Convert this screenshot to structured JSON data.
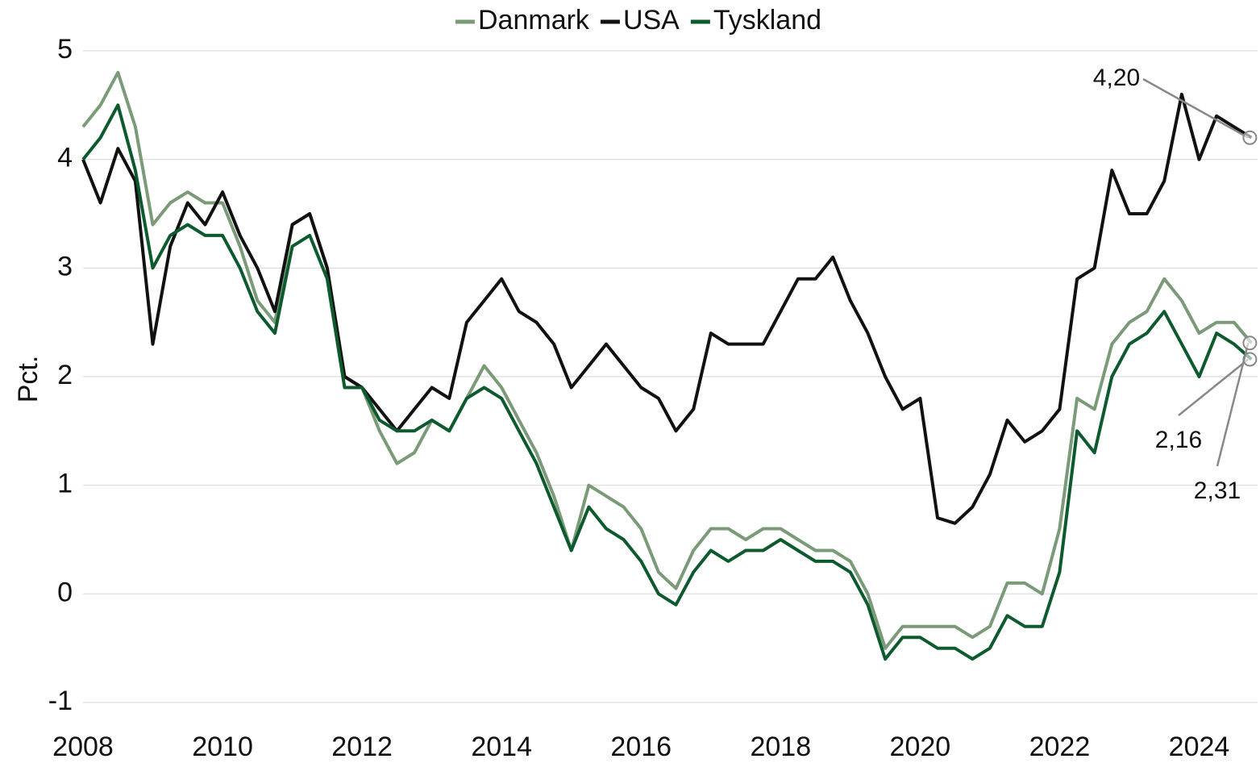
{
  "chart_data": {
    "type": "line",
    "y_label": "Pct.",
    "x": [
      2008,
      2008.25,
      2008.5,
      2008.75,
      2009,
      2009.25,
      2009.5,
      2009.75,
      2010,
      2010.25,
      2010.5,
      2010.75,
      2011,
      2011.25,
      2011.5,
      2011.75,
      2012,
      2012.25,
      2012.5,
      2012.75,
      2013,
      2013.25,
      2013.5,
      2013.75,
      2014,
      2014.25,
      2014.5,
      2014.75,
      2015,
      2015.25,
      2015.5,
      2015.75,
      2016,
      2016.25,
      2016.5,
      2016.75,
      2017,
      2017.25,
      2017.5,
      2017.75,
      2018,
      2018.25,
      2018.5,
      2018.75,
      2019,
      2019.25,
      2019.5,
      2019.75,
      2020,
      2020.25,
      2020.5,
      2020.75,
      2021,
      2021.25,
      2021.5,
      2021.75,
      2022,
      2022.25,
      2022.5,
      2022.75,
      2023,
      2023.25,
      2023.5,
      2023.75,
      2024,
      2024.25,
      2024.5,
      2024.75
    ],
    "series": [
      {
        "name": "Danmark",
        "color": "#7a9a78",
        "values": [
          4.3,
          4.5,
          4.8,
          4.3,
          3.4,
          3.6,
          3.7,
          3.6,
          3.6,
          3.2,
          2.7,
          2.5,
          3.4,
          3.5,
          3.0,
          2.0,
          1.9,
          1.5,
          1.2,
          1.3,
          1.6,
          1.5,
          1.8,
          2.1,
          1.9,
          1.6,
          1.3,
          0.9,
          0.4,
          1.0,
          0.9,
          0.8,
          0.6,
          0.2,
          0.05,
          0.4,
          0.6,
          0.6,
          0.5,
          0.6,
          0.6,
          0.5,
          0.4,
          0.4,
          0.3,
          0.0,
          -0.5,
          -0.3,
          -0.3,
          -0.3,
          -0.3,
          -0.4,
          -0.3,
          0.1,
          0.1,
          0.0,
          0.6,
          1.8,
          1.7,
          2.3,
          2.5,
          2.6,
          2.9,
          2.7,
          2.4,
          2.5,
          2.5,
          2.31
        ]
      },
      {
        "name": "USA",
        "color": "#111111",
        "values": [
          4.0,
          3.6,
          4.1,
          3.8,
          2.3,
          3.2,
          3.6,
          3.4,
          3.7,
          3.3,
          3.0,
          2.6,
          3.4,
          3.5,
          3.0,
          2.0,
          1.9,
          1.7,
          1.5,
          1.7,
          1.9,
          1.8,
          2.5,
          2.7,
          2.9,
          2.6,
          2.5,
          2.3,
          1.9,
          2.1,
          2.3,
          2.1,
          1.9,
          1.8,
          1.5,
          1.7,
          2.4,
          2.3,
          2.3,
          2.3,
          2.6,
          2.9,
          2.9,
          3.1,
          2.7,
          2.4,
          2.0,
          1.7,
          1.8,
          0.7,
          0.65,
          0.8,
          1.1,
          1.6,
          1.4,
          1.5,
          1.7,
          2.9,
          3.0,
          3.9,
          3.5,
          3.5,
          3.8,
          4.6,
          4.0,
          4.4,
          4.3,
          4.2
        ]
      },
      {
        "name": "Tyskland",
        "color": "#0d5a2e",
        "values": [
          4.0,
          4.2,
          4.5,
          3.9,
          3.0,
          3.3,
          3.4,
          3.3,
          3.3,
          3.0,
          2.6,
          2.4,
          3.2,
          3.3,
          2.9,
          1.9,
          1.9,
          1.6,
          1.5,
          1.5,
          1.6,
          1.5,
          1.8,
          1.9,
          1.8,
          1.5,
          1.2,
          0.8,
          0.4,
          0.8,
          0.6,
          0.5,
          0.3,
          0.0,
          -0.1,
          0.2,
          0.4,
          0.3,
          0.4,
          0.4,
          0.5,
          0.4,
          0.3,
          0.3,
          0.2,
          -0.1,
          -0.6,
          -0.4,
          -0.4,
          -0.5,
          -0.5,
          -0.6,
          -0.5,
          -0.2,
          -0.3,
          -0.3,
          0.2,
          1.5,
          1.3,
          2.0,
          2.3,
          2.4,
          2.6,
          2.3,
          2.0,
          2.4,
          2.3,
          2.16
        ]
      }
    ],
    "annotations": [
      {
        "label": "4,20",
        "value": 4.2
      },
      {
        "label": "2,16",
        "value": 2.16
      },
      {
        "label": "2,31",
        "value": 2.31
      }
    ],
    "xlim": [
      2008,
      2024.78
    ],
    "xticks": [
      2008,
      2010,
      2012,
      2014,
      2016,
      2018,
      2020,
      2022,
      2024
    ],
    "ylim": [
      -1,
      5
    ],
    "yticks": [
      -1,
      0,
      1,
      2,
      3,
      4,
      5
    ],
    "grid": true,
    "legend": "top"
  }
}
